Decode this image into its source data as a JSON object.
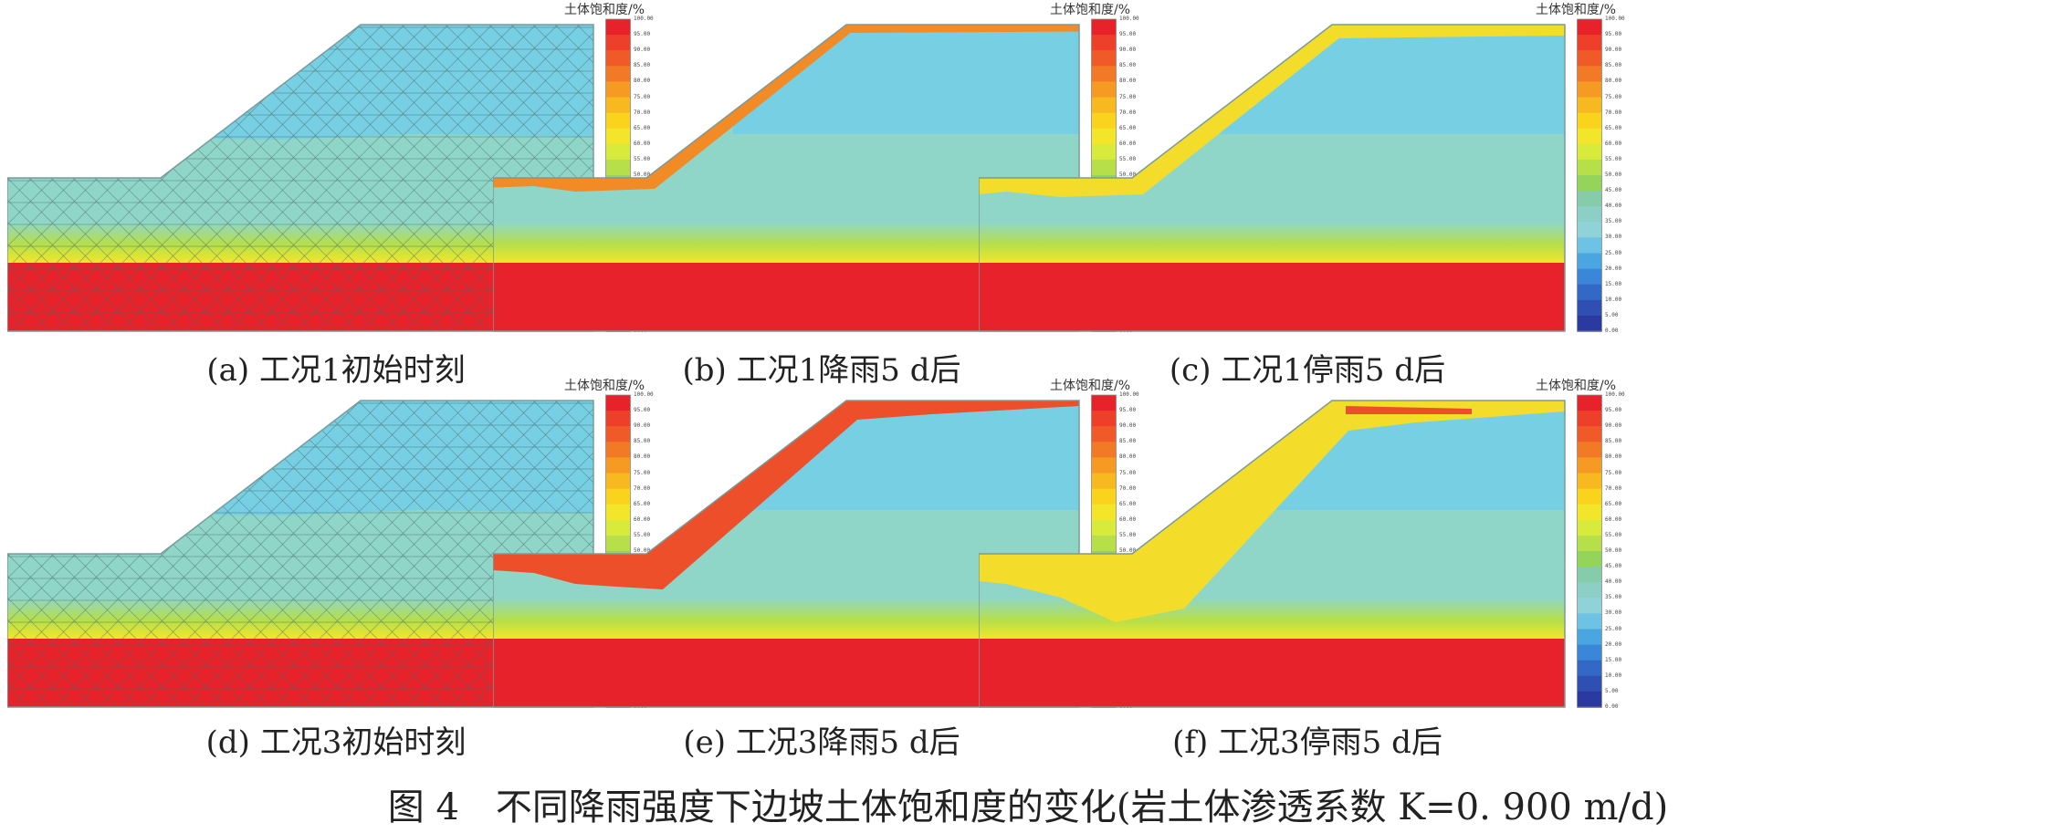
{
  "legend": {
    "title": "土体饱和度/%",
    "ticks": [
      "100.00",
      "95.00",
      "90.00",
      "85.00",
      "80.00",
      "75.00",
      "70.00",
      "65.00",
      "60.00",
      "55.00",
      "50.00",
      "45.00",
      "40.00",
      "35.00",
      "30.00",
      "25.00",
      "20.00",
      "15.00",
      "10.00",
      "5.00",
      "0.00"
    ],
    "colors": [
      "#e8222a",
      "#ee3f2a",
      "#f05a28",
      "#f27a26",
      "#f59a22",
      "#f8b81f",
      "#f9d31c",
      "#f3e62a",
      "#d8ea3c",
      "#b6df4a",
      "#95d45b",
      "#86ccab",
      "#8dcfc7",
      "#8fd3d8",
      "#6ec2e3",
      "#49a6e0",
      "#3a86d8",
      "#3368c7",
      "#2f4fb3",
      "#2b3aa0"
    ]
  },
  "colors": {
    "bedrock": "#e8222a",
    "transition": "#f3e62a",
    "soil_lower": "#8fd6c9",
    "soil_upper": "#76cfe2",
    "wet": "#f28a26",
    "damp": "#f3dc2a",
    "mesh": "#4a6a6a"
  },
  "panels": [
    {
      "id": "a",
      "caption": "(a) 工况1初始时刻",
      "state": "initial"
    },
    {
      "id": "b",
      "caption": "(b) 工况1降雨5 d后",
      "state": "rain_light"
    },
    {
      "id": "c",
      "caption": "(c) 工况1停雨5 d后",
      "state": "stop_light"
    },
    {
      "id": "d",
      "caption": "(d) 工况3初始时刻",
      "state": "initial"
    },
    {
      "id": "e",
      "caption": "(e) 工况3降雨5 d后",
      "state": "rain_heavy"
    },
    {
      "id": "f",
      "caption": "(f) 工况3停雨5 d后",
      "state": "stop_heavy"
    }
  ],
  "figure_title": "图 4　不同降雨强度下边坡土体饱和度的变化(岩土体渗透系数 K=0. 900 m/d)"
}
